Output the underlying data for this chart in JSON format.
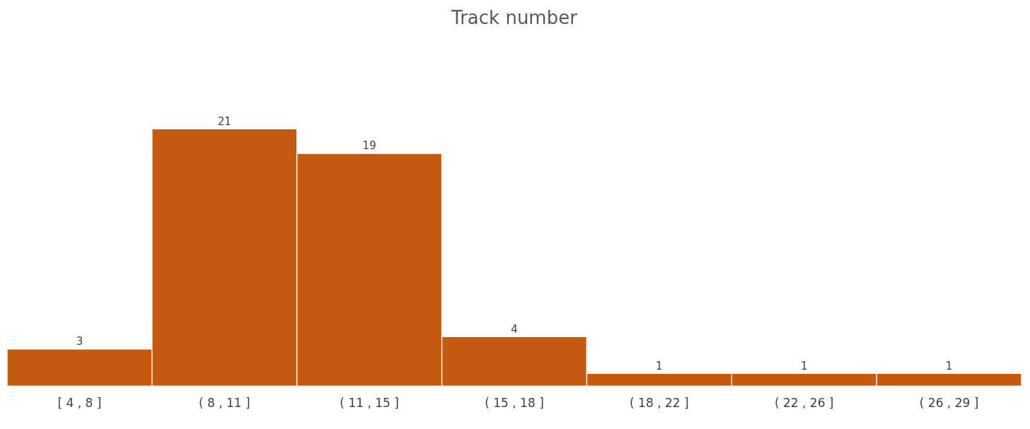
{
  "chart_data": {
    "type": "bar",
    "title": "Track number",
    "categories": [
      "[ 4 , 8 ]",
      "( 8 , 11 ]",
      "( 11 , 15 ]",
      "( 15 , 18 ]",
      "( 18 , 22 ]",
      "( 22 , 26 ]",
      "( 26 , 29 ]"
    ],
    "values": [
      3,
      21,
      19,
      4,
      1,
      1,
      1
    ],
    "color": "#c55a11",
    "data_labels": true,
    "grid": false,
    "legend": false
  }
}
